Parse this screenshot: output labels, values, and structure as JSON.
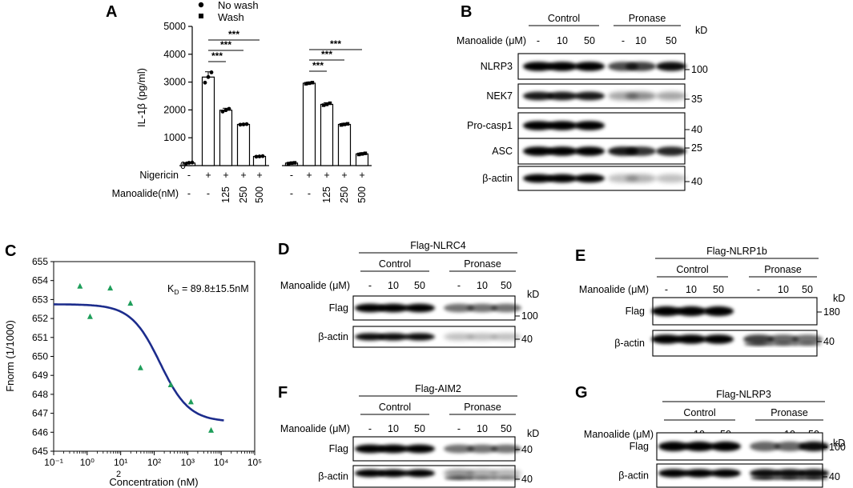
{
  "panel_letters": [
    "A",
    "B",
    "C",
    "D",
    "E",
    "F",
    "G"
  ],
  "chart_data": [
    {
      "panel": "A",
      "type": "bar",
      "ylabel": "IL-1β (pg/ml)",
      "xlabel": "",
      "ylim": [
        0,
        5000
      ],
      "yticks": [
        0,
        1000,
        2000,
        3000,
        4000,
        5000
      ],
      "legend": [
        {
          "name": "No wash",
          "marker": "circle"
        },
        {
          "name": "Wash",
          "marker": "square"
        }
      ],
      "legend_position": "top",
      "row_labels": [
        "Nigericin",
        "Manoalide(nM)"
      ],
      "groups": [
        {
          "group": "No wash",
          "nigericin": [
            "-",
            "+",
            "+",
            "+",
            "+"
          ],
          "manoalide": [
            "-",
            "-",
            "125",
            "250",
            "500"
          ],
          "values": [
            90,
            3180,
            1990,
            1480,
            330
          ],
          "points": [
            [
              60,
              100,
              110
            ],
            [
              2980,
              3180,
              3350
            ],
            [
              1940,
              1990,
              2040
            ],
            [
              1470,
              1480,
              1490
            ],
            [
              320,
              330,
              340
            ]
          ]
        },
        {
          "group": "Wash",
          "nigericin": [
            "-",
            "+",
            "+",
            "+",
            "+"
          ],
          "manoalide": [
            "-",
            "-",
            "125",
            "250",
            "500"
          ],
          "values": [
            90,
            2960,
            2200,
            1480,
            420
          ],
          "points": [
            [
              70,
              90,
              100
            ],
            [
              2940,
              2960,
              2980
            ],
            [
              2170,
              2200,
              2240
            ],
            [
              1460,
              1480,
              1500
            ],
            [
              400,
              420,
              440
            ]
          ]
        }
      ],
      "significance": "***"
    },
    {
      "panel": "C",
      "type": "scatter",
      "xlabel": "Concentration (nM)",
      "ylabel": "Fnorm (1/1000)",
      "xscale": "log",
      "xlim": [
        0.1,
        100000
      ],
      "xtick_labels": [
        "10⁻¹",
        "10⁰",
        "10¹",
        "10²",
        "10³",
        "10⁴",
        "10⁵"
      ],
      "extra_tick_label": "2",
      "ylim": [
        645,
        655
      ],
      "yticks": [
        645,
        646,
        647,
        648,
        649,
        650,
        651,
        652,
        653,
        654,
        655
      ],
      "annotation": "K",
      "annotation_sub": "D",
      "annotation_rest": " = 89.8±15.5nM",
      "fit": {
        "top": 652.75,
        "bottom": 646.55,
        "ec50": 150
      },
      "x": [
        0.61,
        1.22,
        4.88,
        19.5,
        39,
        312,
        1250,
        5000
      ],
      "y": [
        653.7,
        652.1,
        653.6,
        652.8,
        649.4,
        648.5,
        647.6,
        646.1
      ]
    }
  ],
  "blots": {
    "B": {
      "conditions": [
        "Control",
        "Pronase"
      ],
      "treatment_label": "Manoalide (μM)",
      "lanes": [
        "-",
        "10",
        "50",
        "-",
        "10",
        "50"
      ],
      "unit_label": "kD",
      "rows": [
        {
          "label": "NLRP3",
          "kd": "100"
        },
        {
          "label": "NEK7",
          "kd": "35"
        },
        {
          "label": "Pro-casp1",
          "kd": "40"
        },
        {
          "label": "ASC",
          "kd": "25"
        },
        {
          "label": "β-actin",
          "kd": "40"
        }
      ]
    },
    "D": {
      "construct": "Flag-NLRC4",
      "conditions": [
        "Control",
        "Pronase"
      ],
      "treatment_label": "Manoalide (μM)",
      "lanes": [
        "-",
        "10",
        "50",
        "-",
        "10",
        "50"
      ],
      "unit_label": "kD",
      "rows": [
        {
          "label": "Flag",
          "kd": "100"
        },
        {
          "label": "β-actin",
          "kd": "40"
        }
      ]
    },
    "E": {
      "construct": "Flag-NLRP1b",
      "conditions": [
        "Control",
        "Pronase"
      ],
      "treatment_label": "Manoalide (μM)",
      "lanes": [
        "-",
        "10",
        "50",
        "-",
        "10",
        "50"
      ],
      "unit_label": "kD",
      "rows": [
        {
          "label": "Flag",
          "kd": "180"
        },
        {
          "label": "β-actin",
          "kd": "40"
        }
      ]
    },
    "F": {
      "construct": "Flag-AIM2",
      "conditions": [
        "Control",
        "Pronase"
      ],
      "treatment_label": "Manoalide (μM)",
      "lanes": [
        "-",
        "10",
        "50",
        "-",
        "10",
        "50"
      ],
      "unit_label": "kD",
      "rows": [
        {
          "label": "Flag",
          "kd": "40"
        },
        {
          "label": "β-actin",
          "kd": "40"
        }
      ]
    },
    "G": {
      "construct": "Flag-NLRP3",
      "conditions": [
        "Control",
        "Pronase"
      ],
      "treatment_label": "Manoalide (μM)",
      "lanes": [
        "-",
        "10",
        "50",
        "-",
        "10",
        "50"
      ],
      "unit_label": "kD",
      "rows": [
        {
          "label": "Flag",
          "kd": "100"
        },
        {
          "label": "β-actin",
          "kd": "40"
        }
      ]
    }
  }
}
